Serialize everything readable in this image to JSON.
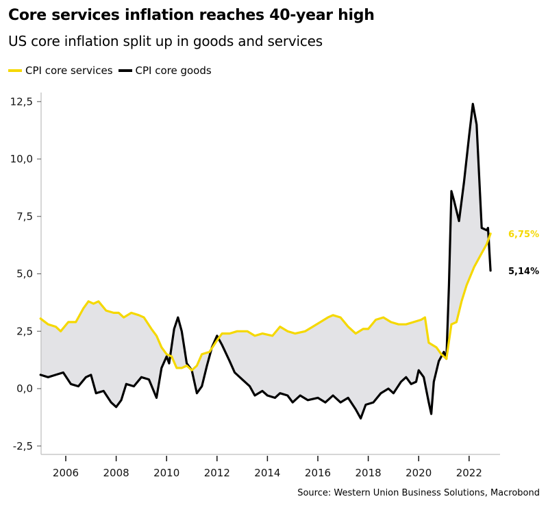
{
  "header": {
    "title": "Core services inflation reaches 40-year high",
    "subtitle": "US core inflation split up in goods and services"
  },
  "source": "Source: Western Union Business Solutions, Macrobond",
  "colors": {
    "services": "#F5D800",
    "goods": "#000000",
    "fill": "#E3E3E6",
    "axis": "#C8C8C8"
  },
  "chart_data": {
    "type": "line",
    "title": "Core services inflation reaches 40-year high",
    "subtitle": "US core inflation split up in goods and services",
    "xlabel": "",
    "ylabel": "",
    "xlim": [
      2005.0,
      2023.4
    ],
    "ylim": [
      -2.8,
      12.8
    ],
    "x_ticks": [
      2006,
      2008,
      2010,
      2012,
      2014,
      2016,
      2018,
      2020,
      2022
    ],
    "x_tick_labels": [
      "2006",
      "2008",
      "2010",
      "2012",
      "2014",
      "2016",
      "2018",
      "2020",
      "2022"
    ],
    "y_ticks": [
      -2.5,
      0.0,
      2.5,
      5.0,
      7.5,
      10.0,
      12.5
    ],
    "y_tick_labels": [
      "-2,5",
      "0,0",
      "2,5",
      "5,0",
      "7,5",
      "10,0",
      "12,5"
    ],
    "grid": false,
    "legend_position": "top-left",
    "fill_between_series": true,
    "series": [
      {
        "name": "CPI core services",
        "color": "#F5D800",
        "end_label": "6,75%",
        "x": [
          2005.0,
          2005.3,
          2005.6,
          2005.8,
          2006.1,
          2006.4,
          2006.7,
          2006.9,
          2007.1,
          2007.3,
          2007.6,
          2007.9,
          2008.1,
          2008.3,
          2008.6,
          2008.9,
          2009.1,
          2009.4,
          2009.6,
          2009.8,
          2010.0,
          2010.2,
          2010.4,
          2010.6,
          2010.8,
          2011.0,
          2011.2,
          2011.4,
          2011.7,
          2012.0,
          2012.2,
          2012.5,
          2012.8,
          2013.2,
          2013.5,
          2013.8,
          2014.2,
          2014.5,
          2014.8,
          2015.1,
          2015.5,
          2015.8,
          2016.1,
          2016.4,
          2016.6,
          2016.9,
          2017.2,
          2017.5,
          2017.8,
          2018.0,
          2018.3,
          2018.6,
          2018.9,
          2019.2,
          2019.5,
          2019.8,
          2020.1,
          2020.25,
          2020.4,
          2020.55,
          2020.7,
          2020.9,
          2021.1,
          2021.3,
          2021.5,
          2021.7,
          2021.9,
          2022.2,
          2022.5,
          2022.7,
          2022.85
        ],
        "values": [
          3.05,
          2.8,
          2.7,
          2.5,
          2.9,
          2.9,
          3.5,
          3.8,
          3.7,
          3.8,
          3.4,
          3.3,
          3.3,
          3.1,
          3.3,
          3.2,
          3.1,
          2.6,
          2.3,
          1.8,
          1.5,
          1.4,
          0.9,
          0.9,
          1.0,
          0.8,
          1.0,
          1.5,
          1.6,
          2.1,
          2.4,
          2.4,
          2.5,
          2.5,
          2.3,
          2.4,
          2.3,
          2.7,
          2.5,
          2.4,
          2.5,
          2.7,
          2.9,
          3.1,
          3.2,
          3.1,
          2.7,
          2.4,
          2.6,
          2.6,
          3.0,
          3.1,
          2.9,
          2.8,
          2.8,
          2.9,
          3.0,
          3.1,
          2.0,
          1.9,
          1.8,
          1.5,
          1.3,
          2.8,
          2.9,
          3.8,
          4.5,
          5.3,
          5.9,
          6.3,
          6.75
        ]
      },
      {
        "name": "CPI core goods",
        "color": "#000000",
        "end_label": "5,14%",
        "x": [
          2005.0,
          2005.3,
          2005.6,
          2005.9,
          2006.2,
          2006.5,
          2006.8,
          2007.0,
          2007.2,
          2007.5,
          2007.8,
          2008.0,
          2008.2,
          2008.4,
          2008.7,
          2009.0,
          2009.3,
          2009.6,
          2009.8,
          2010.0,
          2010.1,
          2010.3,
          2010.45,
          2010.6,
          2010.8,
          2011.0,
          2011.2,
          2011.4,
          2011.6,
          2011.8,
          2012.0,
          2012.2,
          2012.5,
          2012.7,
          2013.0,
          2013.3,
          2013.5,
          2013.8,
          2014.0,
          2014.3,
          2014.5,
          2014.8,
          2015.0,
          2015.3,
          2015.6,
          2016.0,
          2016.3,
          2016.6,
          2016.9,
          2017.2,
          2017.5,
          2017.7,
          2017.9,
          2018.2,
          2018.5,
          2018.8,
          2019.0,
          2019.3,
          2019.5,
          2019.7,
          2019.9,
          2020.0,
          2020.2,
          2020.4,
          2020.5,
          2020.6,
          2020.8,
          2021.0,
          2021.1,
          2021.2,
          2021.3,
          2021.4,
          2021.6,
          2021.8,
          2022.0,
          2022.15,
          2022.3,
          2022.5,
          2022.7,
          2022.75,
          2022.85
        ],
        "values": [
          0.6,
          0.5,
          0.6,
          0.7,
          0.2,
          0.1,
          0.5,
          0.6,
          -0.2,
          -0.1,
          -0.6,
          -0.8,
          -0.5,
          0.2,
          0.1,
          0.5,
          0.4,
          -0.4,
          0.9,
          1.4,
          1.1,
          2.6,
          3.1,
          2.5,
          1.1,
          0.8,
          -0.2,
          0.1,
          1.0,
          1.8,
          2.3,
          1.9,
          1.2,
          0.7,
          0.4,
          0.1,
          -0.3,
          -0.1,
          -0.3,
          -0.4,
          -0.2,
          -0.3,
          -0.6,
          -0.3,
          -0.5,
          -0.4,
          -0.6,
          -0.3,
          -0.6,
          -0.4,
          -0.9,
          -1.3,
          -0.7,
          -0.6,
          -0.2,
          0.0,
          -0.2,
          0.3,
          0.5,
          0.2,
          0.3,
          0.8,
          0.5,
          -0.6,
          -1.1,
          0.3,
          1.2,
          1.6,
          1.3,
          4.5,
          8.6,
          8.2,
          7.3,
          9.0,
          11.0,
          12.4,
          11.5,
          7.0,
          6.9,
          7.0,
          5.14
        ]
      }
    ]
  },
  "legend": [
    {
      "label": "CPI core services",
      "color": "#F5D800"
    },
    {
      "label": "CPI core goods",
      "color": "#000000"
    }
  ]
}
